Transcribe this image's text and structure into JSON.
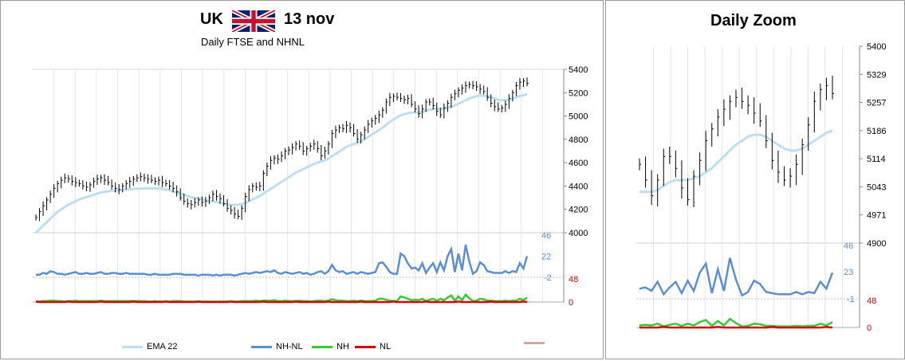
{
  "main": {
    "title_country": "UK",
    "title_date": "13 nov",
    "subtitle": "Daily FTSE and NHNL",
    "flag_icon": "uk-flag-icon",
    "price_ticks": [
      "5400",
      "5200",
      "5000",
      "4800",
      "4600",
      "4400",
      "4200",
      "4000"
    ],
    "nhnl_ticks": [
      "46",
      "22",
      "-2"
    ],
    "nh_ticks": [
      "48",
      "0"
    ],
    "legend": [
      {
        "label": "EMA 22",
        "color": "#bcdff0"
      },
      {
        "label": "NH-NL",
        "color": "#5b8fd2"
      },
      {
        "label": "NH",
        "color": "#33cc33"
      },
      {
        "label": "NL",
        "color": "#dd0000"
      }
    ],
    "legend_extra_color": "#d4a5a5"
  },
  "zoom": {
    "title": "Daily Zoom",
    "price_ticks": [
      "5400",
      "5329",
      "5257",
      "5186",
      "5114",
      "5043",
      "4971",
      "4900"
    ],
    "nhnl_ticks": [
      "46",
      "23",
      "-1"
    ],
    "nh_ticks": [
      "48",
      "0"
    ]
  },
  "chart_data": [
    {
      "type": "line",
      "title": "UK 13 nov",
      "subtitle": "Daily FTSE and NHNL",
      "price_ylim": [
        4000,
        5400
      ],
      "ohlc_close": [
        4130,
        4180,
        4230,
        4280,
        4330,
        4380,
        4420,
        4450,
        4470,
        4460,
        4440,
        4430,
        4420,
        4400,
        4390,
        4410,
        4440,
        4460,
        4470,
        4450,
        4430,
        4400,
        4380,
        4370,
        4400,
        4420,
        4440,
        4460,
        4470,
        4480,
        4470,
        4460,
        4450,
        4440,
        4450,
        4430,
        4420,
        4400,
        4380,
        4350,
        4300,
        4270,
        4250,
        4240,
        4260,
        4280,
        4260,
        4270,
        4300,
        4330,
        4310,
        4290,
        4250,
        4210,
        4190,
        4160,
        4140,
        4210,
        4310,
        4370,
        4400,
        4390,
        4400,
        4510,
        4570,
        4620,
        4640,
        4630,
        4660,
        4700,
        4710,
        4730,
        4760,
        4740,
        4700,
        4720,
        4740,
        4760,
        4720,
        4660,
        4700,
        4760,
        4850,
        4880,
        4900,
        4890,
        4920,
        4900,
        4850,
        4800,
        4840,
        4880,
        4930,
        4960,
        4980,
        5010,
        5050,
        5120,
        5160,
        5170,
        5160,
        5150,
        5140,
        5150,
        5100,
        5060,
        5020,
        5060,
        5120,
        5120,
        5090,
        5040,
        5010,
        5070,
        5110,
        5160,
        5190,
        5220,
        5240,
        5260,
        5270,
        5260,
        5250,
        5230,
        5210,
        5160,
        5110,
        5080,
        5060,
        5070,
        5100,
        5150,
        5200,
        5260,
        5290,
        5300,
        5280
      ],
      "ema22": [
        4000,
        4030,
        4060,
        4090,
        4120,
        4150,
        4180,
        4200,
        4220,
        4240,
        4255,
        4270,
        4285,
        4295,
        4305,
        4315,
        4325,
        4335,
        4345,
        4350,
        4355,
        4360,
        4360,
        4362,
        4365,
        4370,
        4372,
        4375,
        4377,
        4378,
        4379,
        4380,
        4380,
        4380,
        4380,
        4375,
        4370,
        4362,
        4354,
        4345,
        4335,
        4325,
        4315,
        4305,
        4298,
        4292,
        4285,
        4278,
        4272,
        4268,
        4262,
        4255,
        4248,
        4242,
        4240,
        4238,
        4240,
        4245,
        4255,
        4270,
        4285,
        4300,
        4315,
        4335,
        4355,
        4375,
        4395,
        4415,
        4435,
        4455,
        4475,
        4495,
        4515,
        4530,
        4545,
        4560,
        4575,
        4590,
        4600,
        4610,
        4620,
        4635,
        4655,
        4675,
        4695,
        4715,
        4735,
        4750,
        4760,
        4770,
        4785,
        4800,
        4820,
        4840,
        4860,
        4880,
        4900,
        4925,
        4950,
        4970,
        4990,
        5005,
        5015,
        5025,
        5030,
        5030,
        5030,
        5035,
        5045,
        5055,
        5060,
        5060,
        5060,
        5065,
        5070,
        5080,
        5090,
        5105,
        5120,
        5135,
        5150,
        5160,
        5170,
        5175,
        5175,
        5170,
        5160,
        5150,
        5140,
        5135,
        5135,
        5140,
        5150,
        5160,
        5170,
        5180,
        5185
      ],
      "nhnl_ylim": [
        -2,
        46
      ],
      "nhnl": [
        1,
        1,
        3,
        2,
        5,
        4,
        2,
        2,
        1,
        2,
        3,
        4,
        2,
        2,
        3,
        2,
        2,
        3,
        4,
        2,
        2,
        3,
        3,
        2,
        2,
        3,
        2,
        2,
        2,
        2,
        2,
        1,
        1,
        2,
        1,
        1,
        1,
        1,
        2,
        2,
        2,
        1,
        1,
        1,
        1,
        0,
        1,
        1,
        1,
        0,
        1,
        0,
        1,
        1,
        1,
        0,
        1,
        2,
        3,
        2,
        3,
        4,
        3,
        4,
        5,
        4,
        6,
        3,
        2,
        4,
        3,
        2,
        3,
        4,
        2,
        3,
        1,
        2,
        4,
        5,
        2,
        5,
        12,
        6,
        4,
        5,
        2,
        3,
        4,
        2,
        4,
        3,
        2,
        3,
        4,
        14,
        15,
        10,
        4,
        2,
        2,
        25,
        22,
        14,
        8,
        9,
        6,
        14,
        3,
        9,
        14,
        4,
        15,
        6,
        22,
        30,
        4,
        25,
        6,
        35,
        16,
        2,
        5,
        15,
        12,
        5,
        4,
        3,
        3,
        3,
        5,
        3,
        5,
        4,
        14,
        8,
        22
      ]
    },
    {
      "type": "line",
      "title": "Daily Zoom",
      "price_ylim": [
        4900,
        5400
      ],
      "nhnl_ylim": [
        -1,
        46
      ]
    }
  ]
}
